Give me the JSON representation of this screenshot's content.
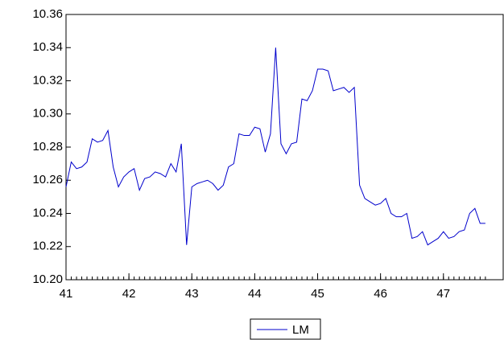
{
  "chart_data": {
    "type": "line",
    "x": [
      41,
      41.083,
      41.167,
      41.25,
      41.333,
      41.417,
      41.5,
      41.583,
      41.667,
      41.75,
      41.833,
      41.917,
      42,
      42.083,
      42.167,
      42.25,
      42.333,
      42.417,
      42.5,
      42.583,
      42.667,
      42.75,
      42.833,
      42.917,
      43,
      43.083,
      43.167,
      43.25,
      43.333,
      43.417,
      43.5,
      43.583,
      43.667,
      43.75,
      43.833,
      43.917,
      44,
      44.083,
      44.167,
      44.25,
      44.333,
      44.417,
      44.5,
      44.583,
      44.667,
      44.75,
      44.833,
      44.917,
      45,
      45.083,
      45.167,
      45.25,
      45.333,
      45.417,
      45.5,
      45.583,
      45.667,
      45.75,
      45.833,
      45.917,
      46,
      46.083,
      46.167,
      46.25,
      46.333,
      46.417,
      46.5,
      46.583,
      46.667,
      46.75,
      46.833,
      46.917,
      47,
      47.083,
      47.167,
      47.25,
      47.333,
      47.417,
      47.5,
      47.583,
      47.667
    ],
    "series": [
      {
        "name": "LM",
        "color": "#0000cc",
        "values": [
          10.256,
          10.271,
          10.267,
          10.268,
          10.271,
          10.285,
          10.283,
          10.284,
          10.29,
          10.268,
          10.256,
          10.262,
          10.265,
          10.267,
          10.254,
          10.261,
          10.262,
          10.265,
          10.264,
          10.262,
          10.27,
          10.265,
          10.282,
          10.221,
          10.256,
          10.258,
          10.259,
          10.26,
          10.258,
          10.254,
          10.257,
          10.268,
          10.27,
          10.288,
          10.287,
          10.287,
          10.292,
          10.291,
          10.277,
          10.288,
          10.34,
          10.282,
          10.276,
          10.282,
          10.283,
          10.309,
          10.308,
          10.314,
          10.327,
          10.327,
          10.326,
          10.314,
          10.315,
          10.316,
          10.313,
          10.316,
          10.257,
          10.249,
          10.247,
          10.245,
          10.246,
          10.249,
          10.24,
          10.238,
          10.238,
          10.24,
          10.225,
          10.226,
          10.229,
          10.221,
          10.223,
          10.225,
          10.229,
          10.225,
          10.226,
          10.229,
          10.23,
          10.24,
          10.243,
          10.234,
          10.234
        ]
      }
    ],
    "xlim": [
      41,
      47.95
    ],
    "xticks": [
      41,
      42,
      43,
      44,
      45,
      46,
      47
    ],
    "ylim": [
      10.2,
      10.36
    ],
    "yticks": [
      {
        "value": 10.2,
        "label": "10.20"
      },
      {
        "value": 10.22,
        "label": "10.22"
      },
      {
        "value": 10.24,
        "label": "10.24"
      },
      {
        "value": 10.26,
        "label": "10.26"
      },
      {
        "value": 10.28,
        "label": "10.28"
      },
      {
        "value": 10.3,
        "label": "10.30"
      },
      {
        "value": 10.32,
        "label": "10.32"
      },
      {
        "value": 10.34,
        "label": "10.34"
      },
      {
        "value": 10.36,
        "label": "10.36"
      }
    ],
    "legend": "bottom"
  }
}
